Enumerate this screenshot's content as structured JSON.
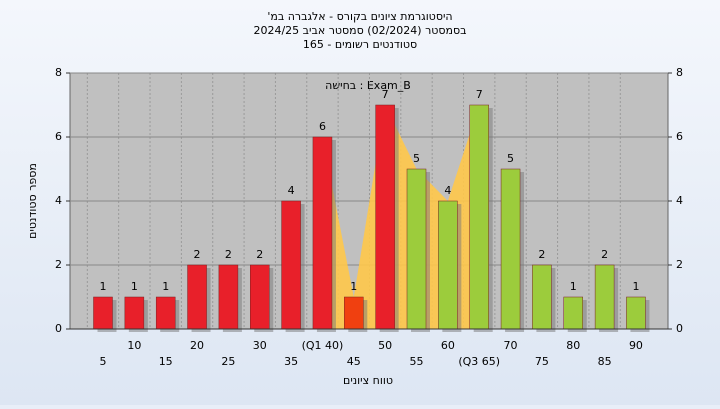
{
  "chart_data": {
    "type": "bar",
    "title": "היסטוגרמת ציונים בקורס - אלגברה במ'",
    "subtitle": "בסמסטר  (02/2024)  סמסטר אביב 2024/25",
    "subtitle2": "סטודנטים רשומים - 165",
    "annotation": "בחישה : Exam_B",
    "x_label": "טווח ציונים",
    "y_label": "מספר סטודנטים",
    "categories": [
      "5",
      "10",
      "15",
      "20",
      "25",
      "30",
      "35",
      "(Q1 40)",
      "45",
      "50",
      "55",
      "60",
      "(Q3 65)",
      "70",
      "75",
      "80",
      "85",
      "90"
    ],
    "values": [
      1,
      1,
      1,
      2,
      2,
      2,
      4,
      6,
      1,
      7,
      5,
      4,
      7,
      5,
      2,
      1,
      2,
      1
    ],
    "colors": [
      "#e8202a",
      "#e8202a",
      "#e8202a",
      "#e8202a",
      "#e8202a",
      "#e8202a",
      "#e8202a",
      "#e8202a",
      "#f04010",
      "#e8202a",
      "#9ccc3c",
      "#9ccc3c",
      "#9ccc3c",
      "#9ccc3c",
      "#9ccc3c",
      "#9ccc3c",
      "#9ccc3c",
      "#9ccc3c"
    ],
    "ylim": [
      0,
      8
    ],
    "yticks": [
      0,
      2,
      4,
      6,
      8
    ],
    "grid": true
  }
}
